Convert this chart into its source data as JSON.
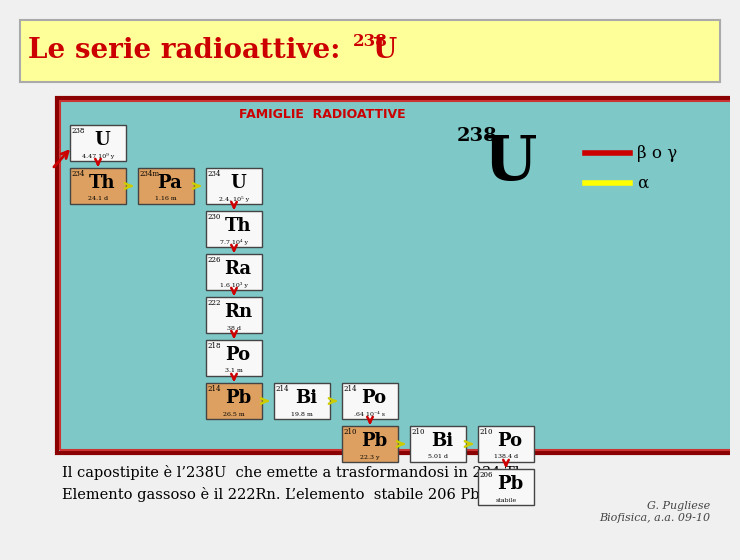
{
  "title_main": "Le serie radioattive: ",
  "title_super": "238",
  "title_elem": "U",
  "bg_color": "#f0f0f0",
  "header_bg": "#ffff99",
  "panel_bg": "#7ec8c8",
  "panel_border_dark": "#8b0000",
  "panel_border_light": "#cc3333",
  "panel_title": "FAMIGLIE  RADIOATTIVE",
  "panel_title_color": "#cc0000",
  "legend_red_color": "#cc0000",
  "legend_yellow_color": "#ffff00",
  "legend_label1": "β o γ",
  "legend_label2": "α",
  "big_U_super": "238",
  "big_U_elem": "U",
  "footer_line1": "Il capostipite è l’238U  che emette a trasformandosi in 234 Th.",
  "footer_line2": "Elemento gassoso è il 222Rn. L’elemento  stabile 206 Pb",
  "footer_right": "G. Pugliese\nBiofisica, a.a. 09-10",
  "box_orange": "#dda060",
  "box_white": "#f8f8f8",
  "elements": [
    {
      "sym": "U",
      "mass": "238",
      "hl": "4.47 10⁹ y",
      "color": "white",
      "col": 0,
      "row": 0
    },
    {
      "sym": "Th",
      "mass": "234",
      "hl": "24.1 d",
      "color": "orange",
      "col": 0,
      "row": 1
    },
    {
      "sym": "Pa",
      "mass": "234m",
      "hl": "1.16 m",
      "color": "orange",
      "col": 1,
      "row": 1
    },
    {
      "sym": "U",
      "mass": "234",
      "hl": "2.4. 10⁵ y",
      "color": "white",
      "col": 2,
      "row": 1
    },
    {
      "sym": "Th",
      "mass": "230",
      "hl": "7.7 10⁴ y",
      "color": "white",
      "col": 2,
      "row": 2
    },
    {
      "sym": "Ra",
      "mass": "226",
      "hl": "1.6 10³ y",
      "color": "white",
      "col": 2,
      "row": 3
    },
    {
      "sym": "Rn",
      "mass": "222",
      "hl": "38 d",
      "color": "white",
      "col": 2,
      "row": 4
    },
    {
      "sym": "Po",
      "mass": "218",
      "hl": "3.1 m",
      "color": "white",
      "col": 2,
      "row": 5
    },
    {
      "sym": "Pb",
      "mass": "214",
      "hl": "26.5 m",
      "color": "orange",
      "col": 2,
      "row": 6
    },
    {
      "sym": "Bi",
      "mass": "214",
      "hl": "19.8 m",
      "color": "white",
      "col": 3,
      "row": 6
    },
    {
      "sym": "Po",
      "mass": "214",
      "hl": ".64 10⁻⁴ s",
      "color": "white",
      "col": 4,
      "row": 6
    },
    {
      "sym": "Pb",
      "mass": "210",
      "hl": "22.3 y",
      "color": "orange",
      "col": 4,
      "row": 7
    },
    {
      "sym": "Bi",
      "mass": "210",
      "hl": "5.01 d",
      "color": "white",
      "col": 5,
      "row": 7
    },
    {
      "sym": "Po",
      "mass": "210",
      "hl": "138.4 d",
      "color": "white",
      "col": 6,
      "row": 7
    },
    {
      "sym": "Pb",
      "mass": "206",
      "hl": "stabile",
      "color": "white",
      "col": 6,
      "row": 8
    }
  ],
  "arrows": [
    {
      "fr": 0,
      "to": 1,
      "color": "red"
    },
    {
      "fr": 1,
      "to": 2,
      "color": "yellow"
    },
    {
      "fr": 2,
      "to": 3,
      "color": "yellow"
    },
    {
      "fr": 3,
      "to": 4,
      "color": "red"
    },
    {
      "fr": 4,
      "to": 5,
      "color": "red"
    },
    {
      "fr": 5,
      "to": 6,
      "color": "red"
    },
    {
      "fr": 6,
      "to": 7,
      "color": "red"
    },
    {
      "fr": 7,
      "to": 8,
      "color": "red"
    },
    {
      "fr": 8,
      "to": 9,
      "color": "yellow"
    },
    {
      "fr": 9,
      "to": 10,
      "color": "yellow"
    },
    {
      "fr": 10,
      "to": 11,
      "color": "red"
    },
    {
      "fr": 11,
      "to": 12,
      "color": "yellow"
    },
    {
      "fr": 12,
      "to": 13,
      "color": "yellow"
    },
    {
      "fr": 13,
      "to": 14,
      "color": "red"
    }
  ]
}
